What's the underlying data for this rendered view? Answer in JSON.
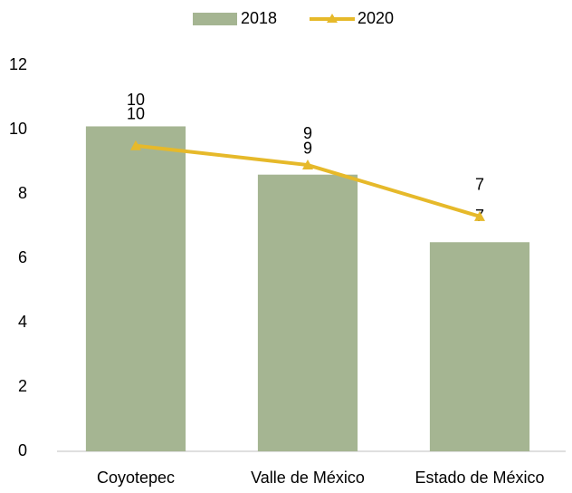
{
  "chart_data": {
    "type": "bar",
    "categories": [
      "Coyotepec",
      "Valle de México",
      "Estado de México"
    ],
    "series": [
      {
        "name": "2018",
        "type": "bar",
        "color": "#a5b592",
        "values": [
          10.1,
          8.6,
          6.5
        ],
        "value_labels": [
          "10",
          "9",
          "7"
        ]
      },
      {
        "name": "2020",
        "type": "line",
        "color": "#e6b92a",
        "values": [
          9.5,
          8.9,
          7.3
        ],
        "value_labels": [
          "10",
          "9",
          "7"
        ]
      }
    ],
    "ylim": [
      0,
      12
    ],
    "yticks": [
      0,
      2,
      4,
      6,
      8,
      10,
      12
    ],
    "grid": false,
    "legend": "top"
  }
}
